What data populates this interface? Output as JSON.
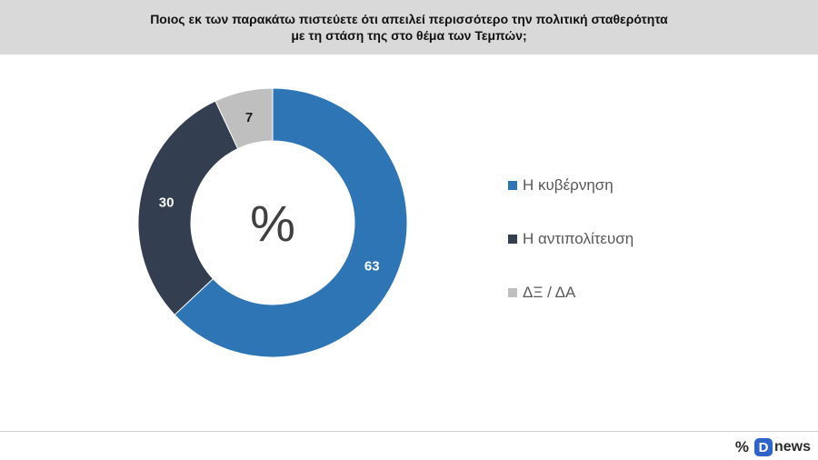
{
  "header": {
    "title_line1": "Ποιος εκ των παρακάτω πιστεύετε ότι απειλεί περισσότερο την πολιτική σταθερότητα",
    "title_line2": "με τη στάση της στο θέμα των Τεμπών;"
  },
  "chart_data": {
    "type": "pie",
    "title": "Ποιος εκ των παρακάτω πιστεύετε ότι απειλεί περισσότερο την πολιτική σταθερότητα με τη στάση της στο θέμα των Τεμπών;",
    "center_label": "%",
    "legend_position": "right",
    "slices": [
      {
        "label": "Η κυβέρνηση",
        "value": 63,
        "color": "#2e75b6",
        "label_color": "#ffffff"
      },
      {
        "label": "Η αντιπολίτευση",
        "value": 30,
        "color": "#333f50",
        "label_color": "#ffffff"
      },
      {
        "label": "ΔΞ / ΔΑ",
        "value": 7,
        "color": "#bfbfbf",
        "label_color": "#1a1a1a"
      }
    ]
  },
  "footer": {
    "brand_symbol": "%",
    "brand_d": "D",
    "brand_name": "news",
    "brand_color": "#2e63c8"
  }
}
